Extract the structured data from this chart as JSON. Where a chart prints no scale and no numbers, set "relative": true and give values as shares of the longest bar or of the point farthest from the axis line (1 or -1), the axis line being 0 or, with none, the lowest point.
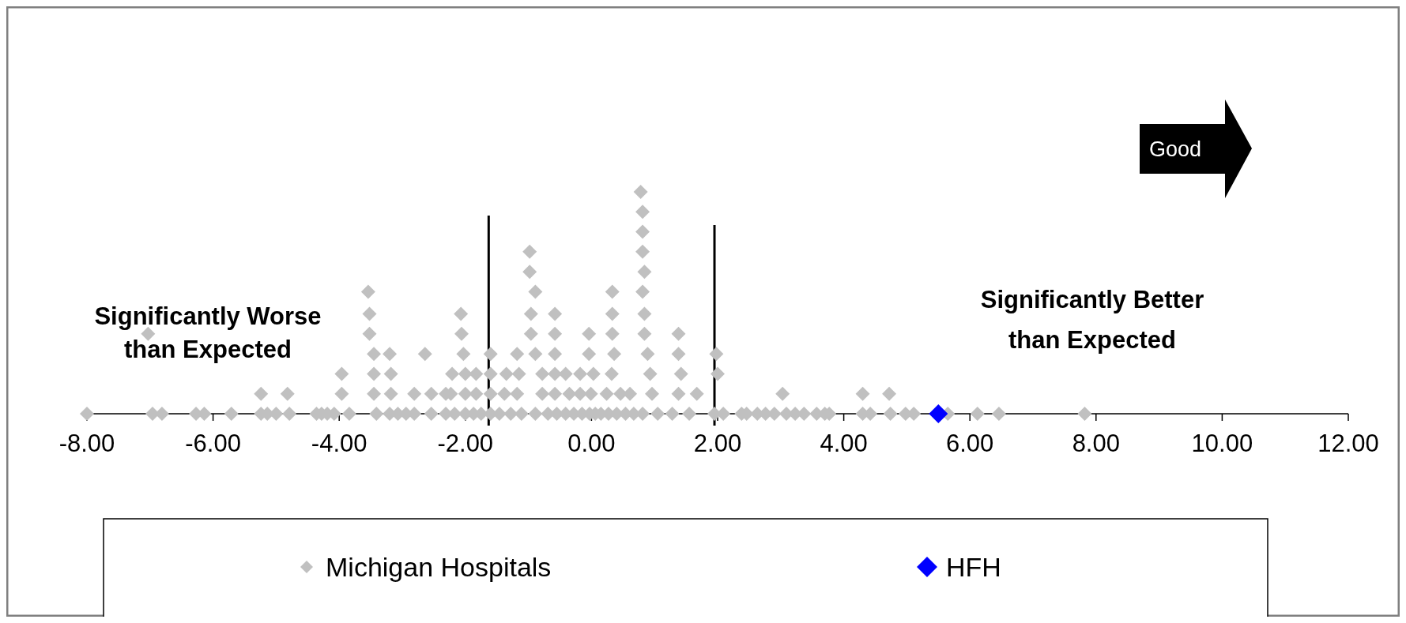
{
  "chart_data": {
    "type": "scatter",
    "relative": true,
    "marker": "diamond",
    "grid": false,
    "legend": "bottom",
    "xlim": [
      -8,
      12
    ],
    "xticks": [
      {
        "value": -8,
        "label": "-8.00"
      },
      {
        "value": -6,
        "label": "-6.00"
      },
      {
        "value": -4,
        "label": "-4.00"
      },
      {
        "value": -2,
        "label": "-2.00"
      },
      {
        "value": 0,
        "label": "0.00"
      },
      {
        "value": 2,
        "label": "2.00"
      },
      {
        "value": 4,
        "label": "4.00"
      },
      {
        "value": 6,
        "label": "6.00"
      },
      {
        "value": 8,
        "label": "8.00"
      },
      {
        "value": 10,
        "label": "10.00"
      },
      {
        "value": 12,
        "label": "12.00"
      }
    ],
    "ref_lines": [
      {
        "axis": "x",
        "value": -1.63,
        "color": "#000000"
      },
      {
        "axis": "x",
        "value": 1.95,
        "color": "#000000"
      }
    ],
    "annotations": [
      "Significantly Worse than Expected",
      "Significantly Better than Expected",
      "Good"
    ],
    "series": [
      {
        "name": "Michigan Hospitals",
        "color": "#c0c0c0",
        "x": [
          -8.0,
          -6.96,
          -6.81,
          -6.27,
          -6.14,
          -5.71,
          -5.24,
          -5.14,
          -5.0,
          -4.79,
          -4.36,
          -4.28,
          -4.19,
          -4.08,
          -3.84,
          -3.41,
          -3.2,
          -3.07,
          -2.94,
          -2.81,
          -2.54,
          -2.31,
          -2.17,
          -2.0,
          -1.87,
          -1.75,
          -1.6,
          -1.46,
          -1.28,
          -1.11,
          -0.89,
          -0.69,
          -0.55,
          -0.41,
          -0.28,
          -0.15,
          -0.03,
          0.06,
          0.15,
          0.27,
          0.4,
          0.54,
          0.67,
          0.81,
          1.05,
          1.28,
          1.55,
          1.95,
          2.09,
          2.38,
          2.46,
          2.63,
          2.76,
          2.9,
          3.09,
          3.23,
          3.37,
          3.57,
          3.7,
          3.77,
          4.3,
          4.42,
          4.74,
          4.98,
          5.11,
          5.65,
          6.12,
          6.46,
          7.82,
          -5.24,
          -4.82,
          -3.96,
          -3.45,
          -3.18,
          -2.81,
          -2.54,
          -2.31,
          -2.23,
          -2.0,
          -1.83,
          -1.6,
          -1.38,
          -1.18,
          -0.78,
          -0.58,
          -0.35,
          -0.18,
          -0.01,
          0.24,
          0.46,
          0.61,
          0.96,
          1.38,
          1.67,
          3.03,
          4.3,
          4.72,
          -3.96,
          -3.45,
          -3.18,
          -2.21,
          -2.0,
          -1.83,
          -1.6,
          -1.35,
          -1.15,
          -0.78,
          -0.58,
          -0.41,
          -0.18,
          0.03,
          0.32,
          0.93,
          1.42,
          2.0,
          -3.45,
          -3.2,
          -2.64,
          -2.03,
          -1.6,
          -1.18,
          -0.89,
          -0.58,
          -0.04,
          0.36,
          0.89,
          1.38,
          1.98,
          -7.03,
          -3.52,
          -2.06,
          -0.96,
          -0.58,
          -0.04,
          0.33,
          0.84,
          1.38,
          -3.52,
          -2.07,
          -0.96,
          -0.58,
          0.33,
          0.84,
          -3.54,
          -0.89,
          0.33,
          0.81,
          -0.98,
          0.84,
          -0.98,
          0.81,
          0.81,
          0.81,
          0.78
        ],
        "values": [
          0,
          0,
          0,
          0,
          0,
          0,
          0,
          0,
          0,
          0,
          0,
          0,
          0,
          0,
          0,
          0,
          0,
          0,
          0,
          0,
          0,
          0,
          0,
          0,
          0,
          0,
          0,
          0,
          0,
          0,
          0,
          0,
          0,
          0,
          0,
          0,
          0,
          0,
          0,
          0,
          0,
          0,
          0,
          0,
          0,
          0,
          0,
          0,
          0,
          0,
          0,
          0,
          0,
          0,
          0,
          0,
          0,
          0,
          0,
          0,
          0,
          0,
          0,
          0,
          0,
          0,
          0,
          0,
          0,
          0.09,
          0.09,
          0.09,
          0.09,
          0.09,
          0.09,
          0.09,
          0.09,
          0.09,
          0.09,
          0.09,
          0.09,
          0.09,
          0.09,
          0.09,
          0.09,
          0.09,
          0.09,
          0.09,
          0.09,
          0.09,
          0.09,
          0.09,
          0.09,
          0.09,
          0.09,
          0.09,
          0.09,
          0.18,
          0.18,
          0.18,
          0.18,
          0.18,
          0.18,
          0.18,
          0.18,
          0.18,
          0.18,
          0.18,
          0.18,
          0.18,
          0.18,
          0.18,
          0.18,
          0.18,
          0.18,
          0.27,
          0.27,
          0.27,
          0.27,
          0.27,
          0.27,
          0.27,
          0.27,
          0.27,
          0.27,
          0.27,
          0.27,
          0.27,
          0.36,
          0.36,
          0.36,
          0.36,
          0.36,
          0.36,
          0.36,
          0.36,
          0.36,
          0.45,
          0.45,
          0.45,
          0.45,
          0.45,
          0.45,
          0.55,
          0.55,
          0.55,
          0.55,
          0.64,
          0.64,
          0.73,
          0.73,
          0.82,
          0.91,
          1
        ]
      },
      {
        "name": "HFH",
        "color": "#0000ff",
        "x": [
          5.5
        ],
        "values": [
          0
        ]
      }
    ]
  }
}
